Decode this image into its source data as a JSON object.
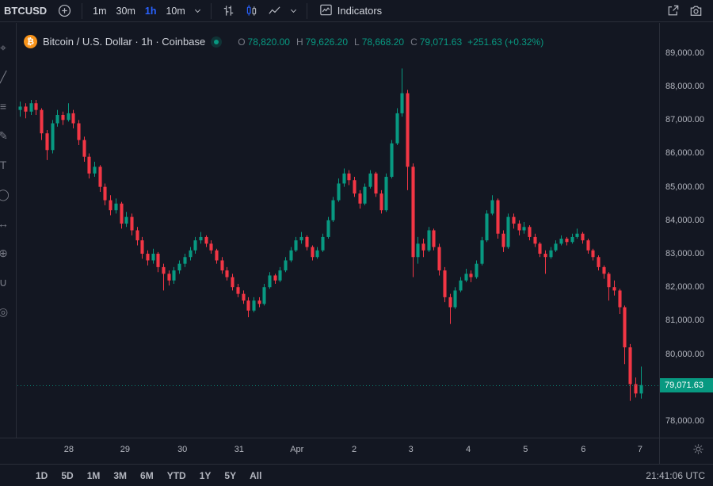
{
  "toolbar": {
    "symbol": "BTCUSD",
    "intervals": [
      {
        "label": "1m",
        "active": false
      },
      {
        "label": "30m",
        "active": false
      },
      {
        "label": "1h",
        "active": true
      },
      {
        "label": "10m",
        "active": false
      }
    ],
    "indicators_label": "Indicators"
  },
  "legend": {
    "title": "Bitcoin / U.S. Dollar · 1h · Coinbase",
    "o_label": "O",
    "o": "78,820.00",
    "h_label": "H",
    "h": "79,626.20",
    "l_label": "L",
    "l": "78,668.20",
    "c_label": "C",
    "c": "79,071.63",
    "change": "+251.63 (+0.32%)"
  },
  "axes": {
    "price_ticks": [
      {
        "label": "89,000.00",
        "value": 89000
      },
      {
        "label": "88,000.00",
        "value": 88000
      },
      {
        "label": "87,000.00",
        "value": 87000
      },
      {
        "label": "86,000.00",
        "value": 86000
      },
      {
        "label": "85,000.00",
        "value": 85000
      },
      {
        "label": "84,000.00",
        "value": 84000
      },
      {
        "label": "83,000.00",
        "value": 83000
      },
      {
        "label": "82,000.00",
        "value": 82000
      },
      {
        "label": "81,000.00",
        "value": 81000
      },
      {
        "label": "80,000.00",
        "value": 80000
      },
      {
        "label": "79,000.00",
        "value": 79000
      },
      {
        "label": "78,000.00",
        "value": 78000
      }
    ],
    "time_ticks": [
      {
        "label": "28",
        "i": 9.2
      },
      {
        "label": "29",
        "i": 19.8
      },
      {
        "label": "30",
        "i": 30.6
      },
      {
        "label": "31",
        "i": 41.3
      },
      {
        "label": "Apr",
        "i": 52.2
      },
      {
        "label": "2",
        "i": 63.0
      },
      {
        "label": "3",
        "i": 73.7
      },
      {
        "label": "4",
        "i": 84.5
      },
      {
        "label": "5",
        "i": 95.3
      },
      {
        "label": "6",
        "i": 106.2
      },
      {
        "label": "7",
        "i": 116.9
      }
    ],
    "price_label": {
      "text": "79,071.63",
      "value": 79071.63
    }
  },
  "bottom": {
    "ranges": [
      "1D",
      "5D",
      "1M",
      "3M",
      "6M",
      "YTD",
      "1Y",
      "5Y",
      "All"
    ],
    "clock": "21:41:06 UTC"
  },
  "left_toolbar": {
    "icons": [
      {
        "name": "crosshair-icon",
        "glyph": "⌖"
      },
      {
        "name": "trend-line-icon",
        "glyph": "╱"
      },
      {
        "name": "fib-retracement-icon",
        "glyph": "≡"
      },
      {
        "name": "brush-icon",
        "glyph": "✎"
      },
      {
        "name": "text-icon",
        "glyph": "T"
      },
      {
        "name": "shapes-icon",
        "glyph": "◯"
      },
      {
        "name": "measure-icon",
        "glyph": "↔"
      },
      {
        "name": "zoom-icon",
        "glyph": "⊕"
      },
      {
        "name": "magnet-icon",
        "glyph": "∪"
      },
      {
        "name": "eye-icon",
        "glyph": "◎"
      }
    ]
  },
  "icons": {
    "bitcoin_logo": "₿"
  },
  "colors": {
    "background": "#131722",
    "border": "#2a2e39",
    "up": "#089981",
    "down": "#f23645",
    "accent": "#2962ff",
    "text": "#d1d4dc",
    "muted": "#787b86",
    "axis_text": "#b2b5be",
    "bitcoin": "#f7931a"
  },
  "chart_data": {
    "type": "candlestick",
    "title": "Bitcoin / U.S. Dollar",
    "symbol": "BTCUSD",
    "interval": "1h",
    "exchange": "Coinbase",
    "legend_position": "top-left",
    "grid": false,
    "price_range": [
      77500,
      89900
    ],
    "slots": 121,
    "current_price": 79071.63,
    "x_axis_labels": [
      "28",
      "29",
      "30",
      "31",
      "Apr",
      "2",
      "3",
      "4",
      "5",
      "6",
      "7"
    ],
    "candles": [
      [
        87300,
        87550,
        87100,
        87400
      ],
      [
        87400,
        87500,
        87050,
        87250
      ],
      [
        87250,
        87600,
        87150,
        87500
      ],
      [
        87500,
        87600,
        87150,
        87300
      ],
      [
        87300,
        87350,
        86400,
        86600
      ],
      [
        86600,
        86700,
        85800,
        86100
      ],
      [
        86100,
        87000,
        86000,
        86900
      ],
      [
        86900,
        87300,
        86800,
        87150
      ],
      [
        87150,
        87250,
        86850,
        87000
      ],
      [
        87000,
        87500,
        86950,
        87200
      ],
      [
        87200,
        87300,
        86750,
        86900
      ],
      [
        86900,
        87000,
        86250,
        86400
      ],
      [
        86400,
        86500,
        85750,
        85900
      ],
      [
        85900,
        86000,
        85250,
        85400
      ],
      [
        85400,
        85750,
        85300,
        85600
      ],
      [
        85600,
        85650,
        84850,
        85000
      ],
      [
        85000,
        85100,
        84450,
        84600
      ],
      [
        84600,
        84750,
        84150,
        84300
      ],
      [
        84300,
        84650,
        84200,
        84500
      ],
      [
        84500,
        84550,
        83750,
        83900
      ],
      [
        83900,
        84250,
        83800,
        84100
      ],
      [
        84100,
        84200,
        83550,
        83700
      ],
      [
        83700,
        83800,
        83250,
        83400
      ],
      [
        83400,
        83500,
        82850,
        83000
      ],
      [
        83000,
        83100,
        82650,
        82800
      ],
      [
        82800,
        83150,
        82700,
        83000
      ],
      [
        83000,
        83050,
        82450,
        82600
      ],
      [
        82600,
        82700,
        81900,
        82400
      ],
      [
        82400,
        82500,
        82050,
        82200
      ],
      [
        82200,
        82600,
        82100,
        82500
      ],
      [
        82500,
        82800,
        82400,
        82700
      ],
      [
        82700,
        83000,
        82600,
        82900
      ],
      [
        82900,
        83200,
        82800,
        83100
      ],
      [
        83100,
        83500,
        83000,
        83400
      ],
      [
        83400,
        83650,
        83300,
        83500
      ],
      [
        83500,
        83550,
        83200,
        83300
      ],
      [
        83300,
        83400,
        83000,
        83100
      ],
      [
        83100,
        83150,
        82700,
        82800
      ],
      [
        82800,
        82900,
        82400,
        82500
      ],
      [
        82500,
        82600,
        82200,
        82300
      ],
      [
        82300,
        82400,
        81900,
        82000
      ],
      [
        82000,
        82100,
        81700,
        81800
      ],
      [
        81800,
        81900,
        81500,
        81600
      ],
      [
        81600,
        81700,
        81100,
        81300
      ],
      [
        81300,
        81700,
        81250,
        81600
      ],
      [
        81600,
        81700,
        81400,
        81500
      ],
      [
        81500,
        82100,
        81450,
        82000
      ],
      [
        82000,
        82450,
        81950,
        82350
      ],
      [
        82350,
        82400,
        82100,
        82200
      ],
      [
        82200,
        82600,
        82150,
        82500
      ],
      [
        82500,
        82900,
        82450,
        82800
      ],
      [
        82800,
        83200,
        82750,
        83100
      ],
      [
        83100,
        83500,
        83050,
        83400
      ],
      [
        83400,
        83650,
        83300,
        83500
      ],
      [
        83500,
        83550,
        83100,
        83200
      ],
      [
        83200,
        83250,
        82800,
        82900
      ],
      [
        82900,
        83200,
        82850,
        83100
      ],
      [
        83100,
        83600,
        83050,
        83500
      ],
      [
        83500,
        84100,
        83450,
        84000
      ],
      [
        84000,
        84700,
        83950,
        84600
      ],
      [
        84600,
        85250,
        84550,
        85100
      ],
      [
        85100,
        85550,
        85000,
        85400
      ],
      [
        85400,
        85500,
        85050,
        85200
      ],
      [
        85200,
        85300,
        84700,
        84800
      ],
      [
        84800,
        84900,
        84350,
        84500
      ],
      [
        84500,
        85100,
        84450,
        85000
      ],
      [
        85000,
        85500,
        84950,
        85400
      ],
      [
        85400,
        85450,
        84700,
        84800
      ],
      [
        84800,
        84900,
        84200,
        84300
      ],
      [
        84300,
        85400,
        84250,
        85300
      ],
      [
        85300,
        86400,
        85250,
        86300
      ],
      [
        86300,
        87350,
        86250,
        87200
      ],
      [
        87200,
        88540,
        87100,
        87800
      ],
      [
        87800,
        87900,
        84900,
        85600
      ],
      [
        85600,
        85700,
        82300,
        82900
      ],
      [
        82900,
        83500,
        82700,
        83300
      ],
      [
        83300,
        83450,
        82900,
        83100
      ],
      [
        83100,
        83800,
        83050,
        83700
      ],
      [
        83700,
        83750,
        83100,
        83200
      ],
      [
        83200,
        83300,
        82350,
        82500
      ],
      [
        82500,
        82600,
        81550,
        81700
      ],
      [
        81700,
        81800,
        80900,
        81400
      ],
      [
        81400,
        82000,
        81350,
        81900
      ],
      [
        81900,
        82300,
        81850,
        82200
      ],
      [
        82200,
        82550,
        82150,
        82400
      ],
      [
        82400,
        82500,
        82150,
        82300
      ],
      [
        82300,
        82800,
        82250,
        82700
      ],
      [
        82700,
        83500,
        82650,
        83400
      ],
      [
        83400,
        84300,
        83350,
        84200
      ],
      [
        84200,
        84750,
        84150,
        84600
      ],
      [
        84600,
        84650,
        83450,
        83600
      ],
      [
        83600,
        83700,
        83050,
        83200
      ],
      [
        83200,
        84200,
        83150,
        84100
      ],
      [
        84100,
        84200,
        83750,
        83900
      ],
      [
        83900,
        84000,
        83550,
        83700
      ],
      [
        83700,
        83950,
        83600,
        83800
      ],
      [
        83800,
        83850,
        83400,
        83500
      ],
      [
        83500,
        83600,
        83200,
        83300
      ],
      [
        83300,
        83350,
        82900,
        83000
      ],
      [
        83000,
        83100,
        82400,
        82900
      ],
      [
        82900,
        83200,
        82850,
        83100
      ],
      [
        83100,
        83400,
        83050,
        83300
      ],
      [
        83300,
        83550,
        83250,
        83450
      ],
      [
        83450,
        83500,
        83250,
        83350
      ],
      [
        83350,
        83600,
        83300,
        83500
      ],
      [
        83500,
        83750,
        83450,
        83600
      ],
      [
        83600,
        83650,
        83300,
        83400
      ],
      [
        83400,
        83450,
        83000,
        83100
      ],
      [
        83100,
        83150,
        82800,
        82900
      ],
      [
        82900,
        82950,
        82500,
        82600
      ],
      [
        82600,
        82650,
        82250,
        82400
      ],
      [
        82400,
        82450,
        81600,
        82000
      ],
      [
        82000,
        82200,
        81750,
        81900
      ],
      [
        81900,
        81950,
        81200,
        81400
      ],
      [
        81400,
        81450,
        79700,
        80200
      ],
      [
        80200,
        80300,
        78600,
        79100
      ],
      [
        79100,
        79300,
        78700,
        78820
      ],
      [
        78820,
        79626.2,
        78668.2,
        79071.63
      ]
    ]
  }
}
